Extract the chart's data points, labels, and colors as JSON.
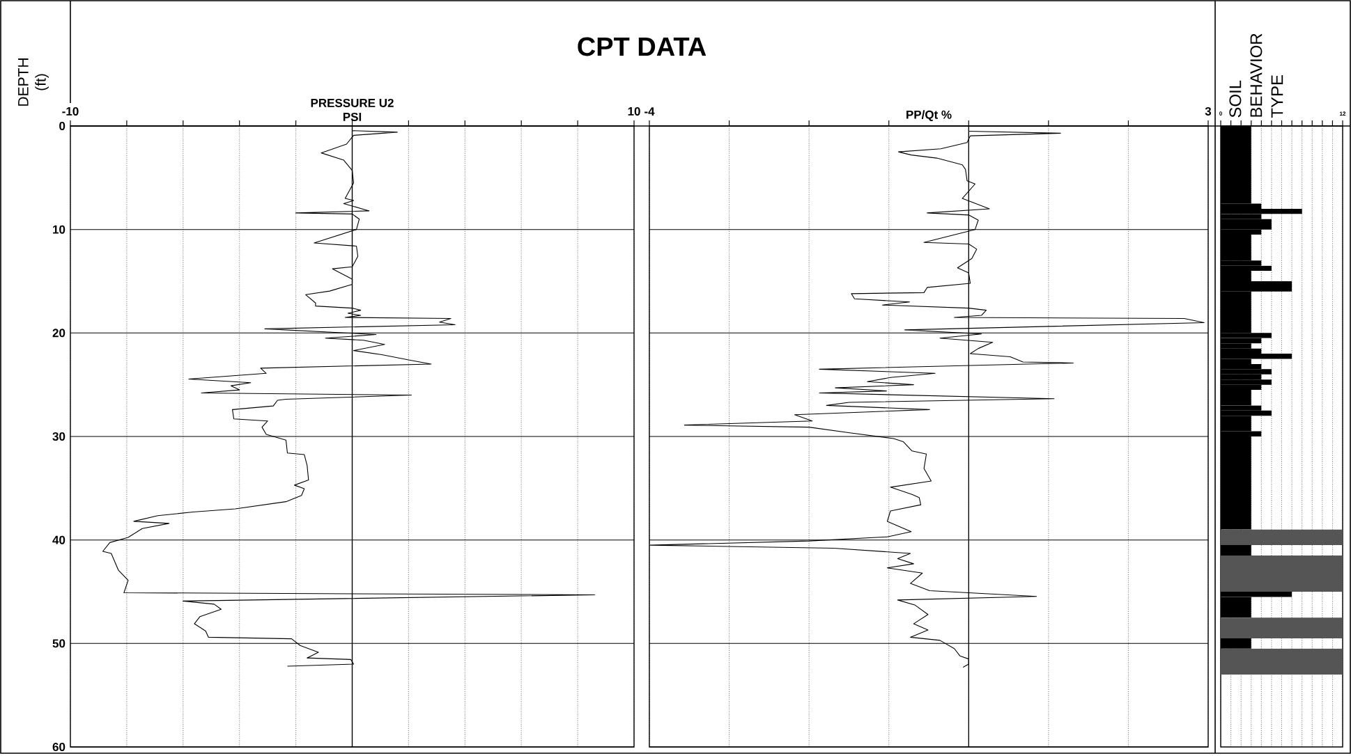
{
  "chart_data": [
    {
      "type": "line",
      "title": "CPT DATA",
      "ylabel": "DEPTH (ft)",
      "xlabel": "PRESSURE U2 PSI",
      "xlim": [
        -10,
        10
      ],
      "xticks": [
        -10,
        {
          "value": -8,
          "label": null
        },
        {
          "value": -6,
          "label": null
        },
        {
          "value": -4,
          "label": null
        },
        {
          "value": -2,
          "label": null
        },
        {
          "value": 0,
          "label": null
        },
        {
          "value": 2,
          "label": null
        },
        {
          "value": 4,
          "label": null
        },
        {
          "value": 6,
          "label": null
        },
        {
          "value": 8,
          "label": null
        },
        10
      ],
      "ylim": [
        60,
        0
      ],
      "yticks": [
        0,
        10,
        20,
        30,
        40,
        50,
        60
      ],
      "grid": true,
      "ref_lines": [
        {
          "axis": "x",
          "value": 0
        }
      ],
      "series": [
        {
          "color": "#000000",
          "x": [
            0,
            1.6,
            0.05,
            -0.2,
            -1.1,
            -0.3,
            0,
            0.05,
            -0.25,
            0.05,
            -0.3,
            0.6,
            -2.0,
            0,
            0.25,
            0.15,
            -1.35,
            0.15,
            0.2,
            0,
            -0.7,
            0,
            0,
            -0.8,
            -1.65,
            -1.3,
            -1.3,
            0,
            0.3,
            -0.15,
            0.3,
            -0.25,
            3.5,
            3.1,
            3.65,
            -3.1,
            0.85,
            -0.95,
            0.4,
            1.15,
            0.05,
            1.05,
            2.0,
            2.8,
            -3.25,
            -3.05,
            -5.8,
            -3.6,
            -4.3,
            -4.0,
            -5.35,
            2.1,
            -2.35,
            -2.65,
            -2.8,
            -4.25,
            -4.2,
            -3.0,
            -3.2,
            -3.05,
            -2.35,
            -2.3,
            -1.7,
            -1.6,
            -1.55,
            -2.05,
            -1.7,
            -1.8,
            -2.35,
            -4.15,
            -5.65,
            -6.9,
            -7.75,
            -6.5,
            -7.45,
            -7.95,
            -8.6,
            -8.85,
            -8.55,
            -8.3,
            -7.95,
            -8.1,
            8.6,
            -6.0,
            -4.9,
            -4.65,
            -5.4,
            -5.6,
            -5.2,
            -5.1,
            -2.15,
            -1.85,
            -1.2,
            -1.6,
            -0.05,
            0.05,
            -2.3
          ],
          "values": [
            0.45,
            0.6,
            0.9,
            1.75,
            2.6,
            3.3,
            4.3,
            5.5,
            7.0,
            7.2,
            7.5,
            8.2,
            8.4,
            8.5,
            9.0,
            10.0,
            11.3,
            11.6,
            12.6,
            13.6,
            13.8,
            14.8,
            15.3,
            15.95,
            16.3,
            17.1,
            17.4,
            17.6,
            17.8,
            18.1,
            18.3,
            18.5,
            18.6,
            18.95,
            19.2,
            19.6,
            20.15,
            20.5,
            20.7,
            21.1,
            21.7,
            22.1,
            22.6,
            23.0,
            23.4,
            23.9,
            24.45,
            24.8,
            25.1,
            25.5,
            25.8,
            26.0,
            26.4,
            26.5,
            27.05,
            27.4,
            28.3,
            28.5,
            29.1,
            29.8,
            30.35,
            31.6,
            31.75,
            32.8,
            34.2,
            34.7,
            35.05,
            35.7,
            36.3,
            37.0,
            37.3,
            37.65,
            38.2,
            38.4,
            38.9,
            39.75,
            40.25,
            41.1,
            41.3,
            42.9,
            43.9,
            45.1,
            45.3,
            45.9,
            46.2,
            46.7,
            47.4,
            48.1,
            48.8,
            49.4,
            49.55,
            50.2,
            50.85,
            51.4,
            51.55,
            52.0,
            52.2
          ]
        }
      ]
    },
    {
      "type": "line",
      "xlabel": "PP/Qt %",
      "xlim": [
        -4,
        3
      ],
      "xticks": [
        -4,
        {
          "value": -3,
          "label": null
        },
        {
          "value": -2,
          "label": null
        },
        {
          "value": -1,
          "label": null
        },
        {
          "value": 0,
          "label": null
        },
        {
          "value": 1,
          "label": null
        },
        {
          "value": 2,
          "label": null
        },
        3
      ],
      "ylim": [
        60,
        0
      ],
      "yticks": [
        0,
        10,
        20,
        30,
        40,
        50,
        60
      ],
      "tick_labels": "x",
      "grid": true,
      "ref_lines": [
        {
          "axis": "x",
          "value": 0
        }
      ],
      "series": [
        {
          "color": "#000000",
          "x": [
            0,
            1.15,
            0.02,
            -0.02,
            -0.35,
            -0.88,
            -0.72,
            -0.4,
            -0.08,
            -0.04,
            -0.02,
            0.08,
            -0.08,
            0.26,
            -0.52,
            0,
            0.12,
            0.08,
            -0.56,
            0,
            0.1,
            0.04,
            -0.14,
            0,
            0.02,
            -0.52,
            -0.56,
            -1.47,
            -1.43,
            -0.74,
            -1.08,
            0,
            0.22,
            0.16,
            -0.18,
            2.7,
            2.95,
            -0.8,
            0.16,
            -0.36,
            0.3,
            0.12,
            0.02,
            0.52,
            0.68,
            1.31,
            -1.87,
            -0.42,
            -0.98,
            -1.27,
            -0.69,
            -1.67,
            -1.03,
            -1.87,
            1.07,
            -1.5,
            -1.78,
            -0.49,
            -2.18,
            -1.96,
            -3.56,
            -2.0,
            -1.49,
            -0.94,
            -0.82,
            -0.71,
            -0.53,
            -0.56,
            -0.47,
            -0.98,
            -0.71,
            -0.62,
            -0.6,
            -0.98,
            -1.02,
            -0.72,
            -1.02,
            -2.0,
            -3.99,
            -1.69,
            -0.73,
            -0.89,
            -0.69,
            -1.02,
            -0.58,
            -0.73,
            -0.49,
            0.85,
            -0.89,
            -0.67,
            -0.51,
            -0.69,
            -0.51,
            -0.73,
            -0.36,
            -0.18,
            -0.11,
            0,
            0,
            -0.07
          ],
          "values": [
            0.5,
            0.7,
            0.95,
            1.6,
            2.2,
            2.5,
            2.8,
            3.1,
            3.75,
            4.2,
            5.3,
            5.6,
            7.0,
            8.0,
            8.4,
            8.6,
            9.1,
            10.0,
            11.25,
            11.4,
            11.9,
            12.8,
            13.7,
            14.2,
            15.2,
            15.6,
            16.1,
            16.2,
            16.7,
            17.0,
            17.3,
            17.6,
            17.8,
            18.3,
            18.5,
            18.6,
            19.0,
            19.7,
            20.1,
            20.5,
            20.9,
            21.5,
            22.0,
            22.3,
            22.8,
            22.9,
            23.5,
            23.9,
            24.3,
            24.7,
            25.0,
            25.3,
            25.6,
            25.8,
            26.35,
            26.7,
            27.0,
            27.4,
            27.9,
            28.5,
            28.9,
            29.1,
            29.65,
            30.2,
            30.5,
            31.4,
            31.7,
            33.1,
            34.3,
            34.9,
            35.6,
            35.9,
            36.6,
            37.2,
            38.2,
            39.2,
            39.7,
            40.1,
            40.5,
            40.8,
            41.3,
            41.8,
            42.3,
            42.7,
            43.2,
            44.2,
            44.9,
            45.45,
            45.8,
            46.3,
            47.2,
            48.1,
            48.7,
            49.4,
            49.7,
            50.5,
            51.2,
            51.5,
            52.0,
            52.3
          ]
        }
      ]
    },
    {
      "type": "histogram",
      "orientation": "horizontal",
      "title": "SOIL BEHAVIOR TYPE",
      "xlim": [
        0,
        12
      ],
      "xticks": [
        0,
        {
          "value": 1,
          "label": null
        },
        {
          "value": 2,
          "label": null
        },
        {
          "value": 3,
          "label": null
        },
        {
          "value": 4,
          "label": null
        },
        {
          "value": 5,
          "label": null
        },
        {
          "value": 6,
          "label": null
        },
        {
          "value": 7,
          "label": null
        },
        {
          "value": 8,
          "label": null
        },
        {
          "value": 9,
          "label": null
        },
        {
          "value": 10,
          "label": null
        },
        {
          "value": 11,
          "label": null
        },
        12
      ],
      "ylim": [
        60,
        0
      ],
      "tick_labels": "x",
      "grid": "x",
      "bins": [
        0,
        7.5,
        8,
        8.5,
        9,
        10,
        10.5,
        13,
        13.5,
        14,
        15,
        16,
        20,
        20.5,
        21,
        21.5,
        22,
        22.5,
        23,
        23.5,
        24,
        24.5,
        25,
        25.5,
        27,
        27.5,
        28,
        29.5,
        30,
        39,
        40.5,
        41.5,
        45,
        45.5,
        47.5,
        49.5,
        50.5,
        53
      ],
      "values": [
        3,
        4,
        8,
        4,
        5,
        4,
        3,
        4,
        5,
        3,
        7,
        3,
        5,
        4,
        3,
        4,
        7,
        3,
        4,
        5,
        4,
        5,
        4,
        3,
        4,
        5,
        3,
        4,
        3,
        12,
        3,
        12,
        7,
        3,
        12,
        3,
        12
      ],
      "colors": [
        "#000000",
        "#000000",
        "#000000",
        "#000000",
        "#000000",
        "#000000",
        "#000000",
        "#000000",
        "#000000",
        "#000000",
        "#000000",
        "#000000",
        "#000000",
        "#000000",
        "#000000",
        "#000000",
        "#000000",
        "#000000",
        "#000000",
        "#000000",
        "#000000",
        "#000000",
        "#000000",
        "#000000",
        "#000000",
        "#000000",
        "#000000",
        "#000000",
        "#000000",
        "#555555",
        "#000000",
        "#555555",
        "#000000",
        "#000000",
        "#555555",
        "#000000",
        "#555555"
      ]
    }
  ]
}
